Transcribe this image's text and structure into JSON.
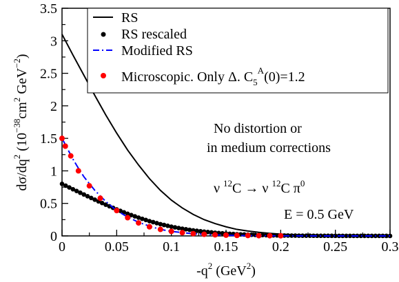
{
  "chart_data": {
    "type": "line",
    "title": "",
    "xlabel": "-q",
    "xlabel_sup": "2",
    "xlabel_units": " (GeV",
    "xlabel_units_sup": "2",
    "xlabel_close": ")",
    "ylabel_main": "dσ/dq",
    "ylabel_sup": "2",
    "ylabel_units": "  (10",
    "ylabel_units_sup": "−38",
    "ylabel_units_cm": "cm",
    "ylabel_units_cm_sup": "2",
    "ylabel_units_gev": " GeV",
    "ylabel_units_gev_sup": "−2",
    "ylabel_units_close": ")",
    "xlim": [
      0,
      0.3
    ],
    "ylim": [
      0,
      3.5
    ],
    "x_ticks": [
      "0",
      "0.05",
      "0.1",
      "0.15",
      "0.2",
      "0.25",
      "0.3"
    ],
    "y_ticks": [
      "0",
      "0.5",
      "1",
      "1.5",
      "2",
      "2.5",
      "3",
      "3.5"
    ],
    "grid": false,
    "legend_position": "top-right",
    "colors": {
      "rs": "#000000",
      "rs_rescaled": "#000000",
      "modified_rs": "#0000ff",
      "microscopic": "#ff0000"
    },
    "series": [
      {
        "name": "RS",
        "style": "solid-line",
        "x": [
          0,
          0.01,
          0.02,
          0.03,
          0.04,
          0.05,
          0.06,
          0.07,
          0.08,
          0.09,
          0.1,
          0.11,
          0.12,
          0.13,
          0.14,
          0.15,
          0.16,
          0.17,
          0.18,
          0.19,
          0.2,
          0.21,
          0.22,
          0.23,
          0.24,
          0.25,
          0.26,
          0.27,
          0.28,
          0.29,
          0.3
        ],
        "y": [
          3.1,
          2.78,
          2.47,
          2.16,
          1.86,
          1.58,
          1.32,
          1.09,
          0.88,
          0.7,
          0.55,
          0.43,
          0.33,
          0.25,
          0.19,
          0.14,
          0.1,
          0.075,
          0.055,
          0.04,
          0.028,
          0.02,
          0.014,
          0.01,
          0.007,
          0.005,
          0.003,
          0.002,
          0.0015,
          0.001,
          0.0005
        ]
      },
      {
        "name": "RS rescaled",
        "style": "black-dots",
        "x": [
          0,
          0.01,
          0.02,
          0.03,
          0.04,
          0.05,
          0.06,
          0.07,
          0.08,
          0.09,
          0.1,
          0.11,
          0.12,
          0.13,
          0.14,
          0.15,
          0.16,
          0.17,
          0.18,
          0.19,
          0.2,
          0.21,
          0.22,
          0.23,
          0.24,
          0.25,
          0.26,
          0.27,
          0.28,
          0.29,
          0.3
        ],
        "y": [
          0.8,
          0.717,
          0.637,
          0.557,
          0.48,
          0.408,
          0.34,
          0.281,
          0.227,
          0.181,
          0.142,
          0.111,
          0.085,
          0.065,
          0.049,
          0.036,
          0.026,
          0.019,
          0.014,
          0.01,
          0.007,
          0.005,
          0.0036,
          0.0026,
          0.0018,
          0.0013,
          0.0008,
          0.0005,
          0.0004,
          0.0003,
          0.0001
        ]
      },
      {
        "name": "Modified RS",
        "style": "dashed-line",
        "x": [
          0,
          0.005,
          0.01,
          0.015,
          0.02,
          0.03,
          0.04,
          0.05,
          0.06,
          0.07,
          0.08,
          0.09,
          0.1,
          0.12,
          0.14,
          0.16,
          0.18,
          0.2,
          0.25,
          0.3
        ],
        "y": [
          1.5,
          1.34,
          1.18,
          1.04,
          0.91,
          0.7,
          0.53,
          0.39,
          0.29,
          0.21,
          0.15,
          0.1,
          0.07,
          0.033,
          0.015,
          0.006,
          0.0025,
          0.001,
          0.0002,
          0
        ]
      },
      {
        "name": "Microscopic.  Only Δ.  C",
        "style": "red-dots",
        "x": [
          0,
          0.003,
          0.008,
          0.015,
          0.025,
          0.035,
          0.05,
          0.06,
          0.07,
          0.08,
          0.09,
          0.1,
          0.11,
          0.12,
          0.13,
          0.14,
          0.15,
          0.16,
          0.17,
          0.18,
          0.19,
          0.2
        ],
        "y": [
          1.5,
          1.38,
          1.23,
          1.0,
          0.77,
          0.58,
          0.39,
          0.28,
          0.2,
          0.14,
          0.1,
          0.07,
          0.05,
          0.035,
          0.025,
          0.017,
          0.012,
          0.008,
          0.006,
          0.004,
          0.003,
          0.002
        ]
      }
    ],
    "legend_micro_sub": "5",
    "legend_micro_sup": "A",
    "legend_micro_tail": "(0)=1.2",
    "annotations": {
      "note_line1": "No distortion or",
      "note_line2": "in medium corrections",
      "reaction_nu1": "ν ",
      "reaction_sup1": "12",
      "reaction_c1": "C  →",
      "reaction_nu2": "ν ",
      "reaction_sup2": "12",
      "reaction_c2": "C π",
      "reaction_sup3": "0",
      "energy": "E = 0.5 GeV"
    }
  }
}
